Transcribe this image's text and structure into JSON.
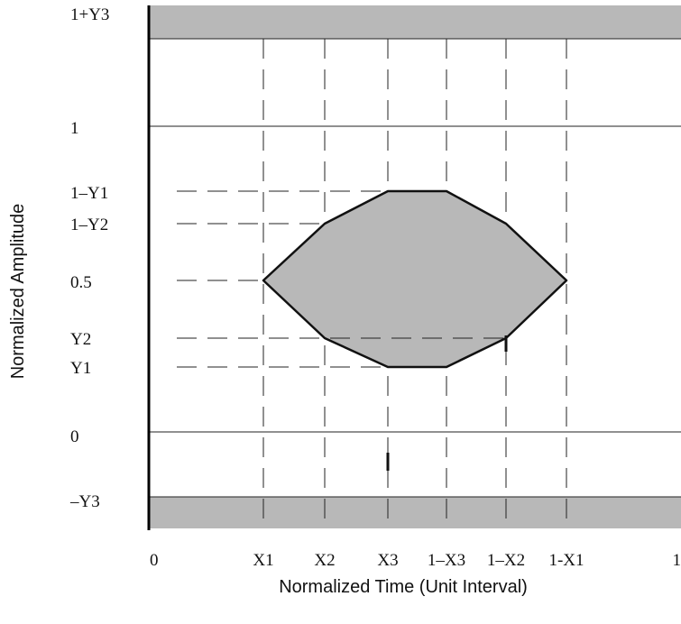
{
  "axes": {
    "x_title": "Normalized Time (Unit Interval)",
    "y_title": "Normalized Amplitude"
  },
  "y_levels": [
    {
      "key": "top",
      "label": "1+Y3",
      "v": 1.3
    },
    {
      "key": "one",
      "label": "1",
      "v": 1.0
    },
    {
      "key": "one-minus-y1",
      "label": "1–Y1",
      "v": 0.8
    },
    {
      "key": "one-minus-y2",
      "label": "1–Y2",
      "v": 0.7
    },
    {
      "key": "half",
      "label": "0.5",
      "v": 0.5
    },
    {
      "key": "y2",
      "label": "Y2",
      "v": 0.3
    },
    {
      "key": "y1",
      "label": "Y1",
      "v": 0.2
    },
    {
      "key": "zero",
      "label": "0",
      "v": 0.0
    },
    {
      "key": "bottom",
      "label": "–Y3",
      "v": -0.3
    }
  ],
  "x_levels": [
    {
      "key": "zero",
      "label": "0",
      "t": 0.0
    },
    {
      "key": "x1",
      "label": "X1",
      "t": 0.2
    },
    {
      "key": "x2",
      "label": "X2",
      "t": 0.3
    },
    {
      "key": "x3",
      "label": "X3",
      "t": 0.4
    },
    {
      "key": "one-minus-x3",
      "label": "1–X3",
      "t": 0.6
    },
    {
      "key": "one-minus-x2",
      "label": "1–X2",
      "t": 0.7
    },
    {
      "key": "one-minus-x1",
      "label": "1-X1",
      "t": 0.8
    },
    {
      "key": "one",
      "label": "1",
      "t": 1.0
    }
  ],
  "eye_polygon": [
    {
      "t": 0.2,
      "v": 0.5
    },
    {
      "t": 0.3,
      "v": 0.7
    },
    {
      "t": 0.4,
      "v": 0.8
    },
    {
      "t": 0.6,
      "v": 0.8
    },
    {
      "t": 0.7,
      "v": 0.7
    },
    {
      "t": 0.8,
      "v": 0.5
    },
    {
      "t": 0.7,
      "v": 0.3
    },
    {
      "t": 0.6,
      "v": 0.2
    },
    {
      "t": 0.4,
      "v": 0.2
    },
    {
      "t": 0.3,
      "v": 0.3
    }
  ],
  "colors": {
    "mask_fill": "#b8b8b8",
    "line": "#222222"
  }
}
